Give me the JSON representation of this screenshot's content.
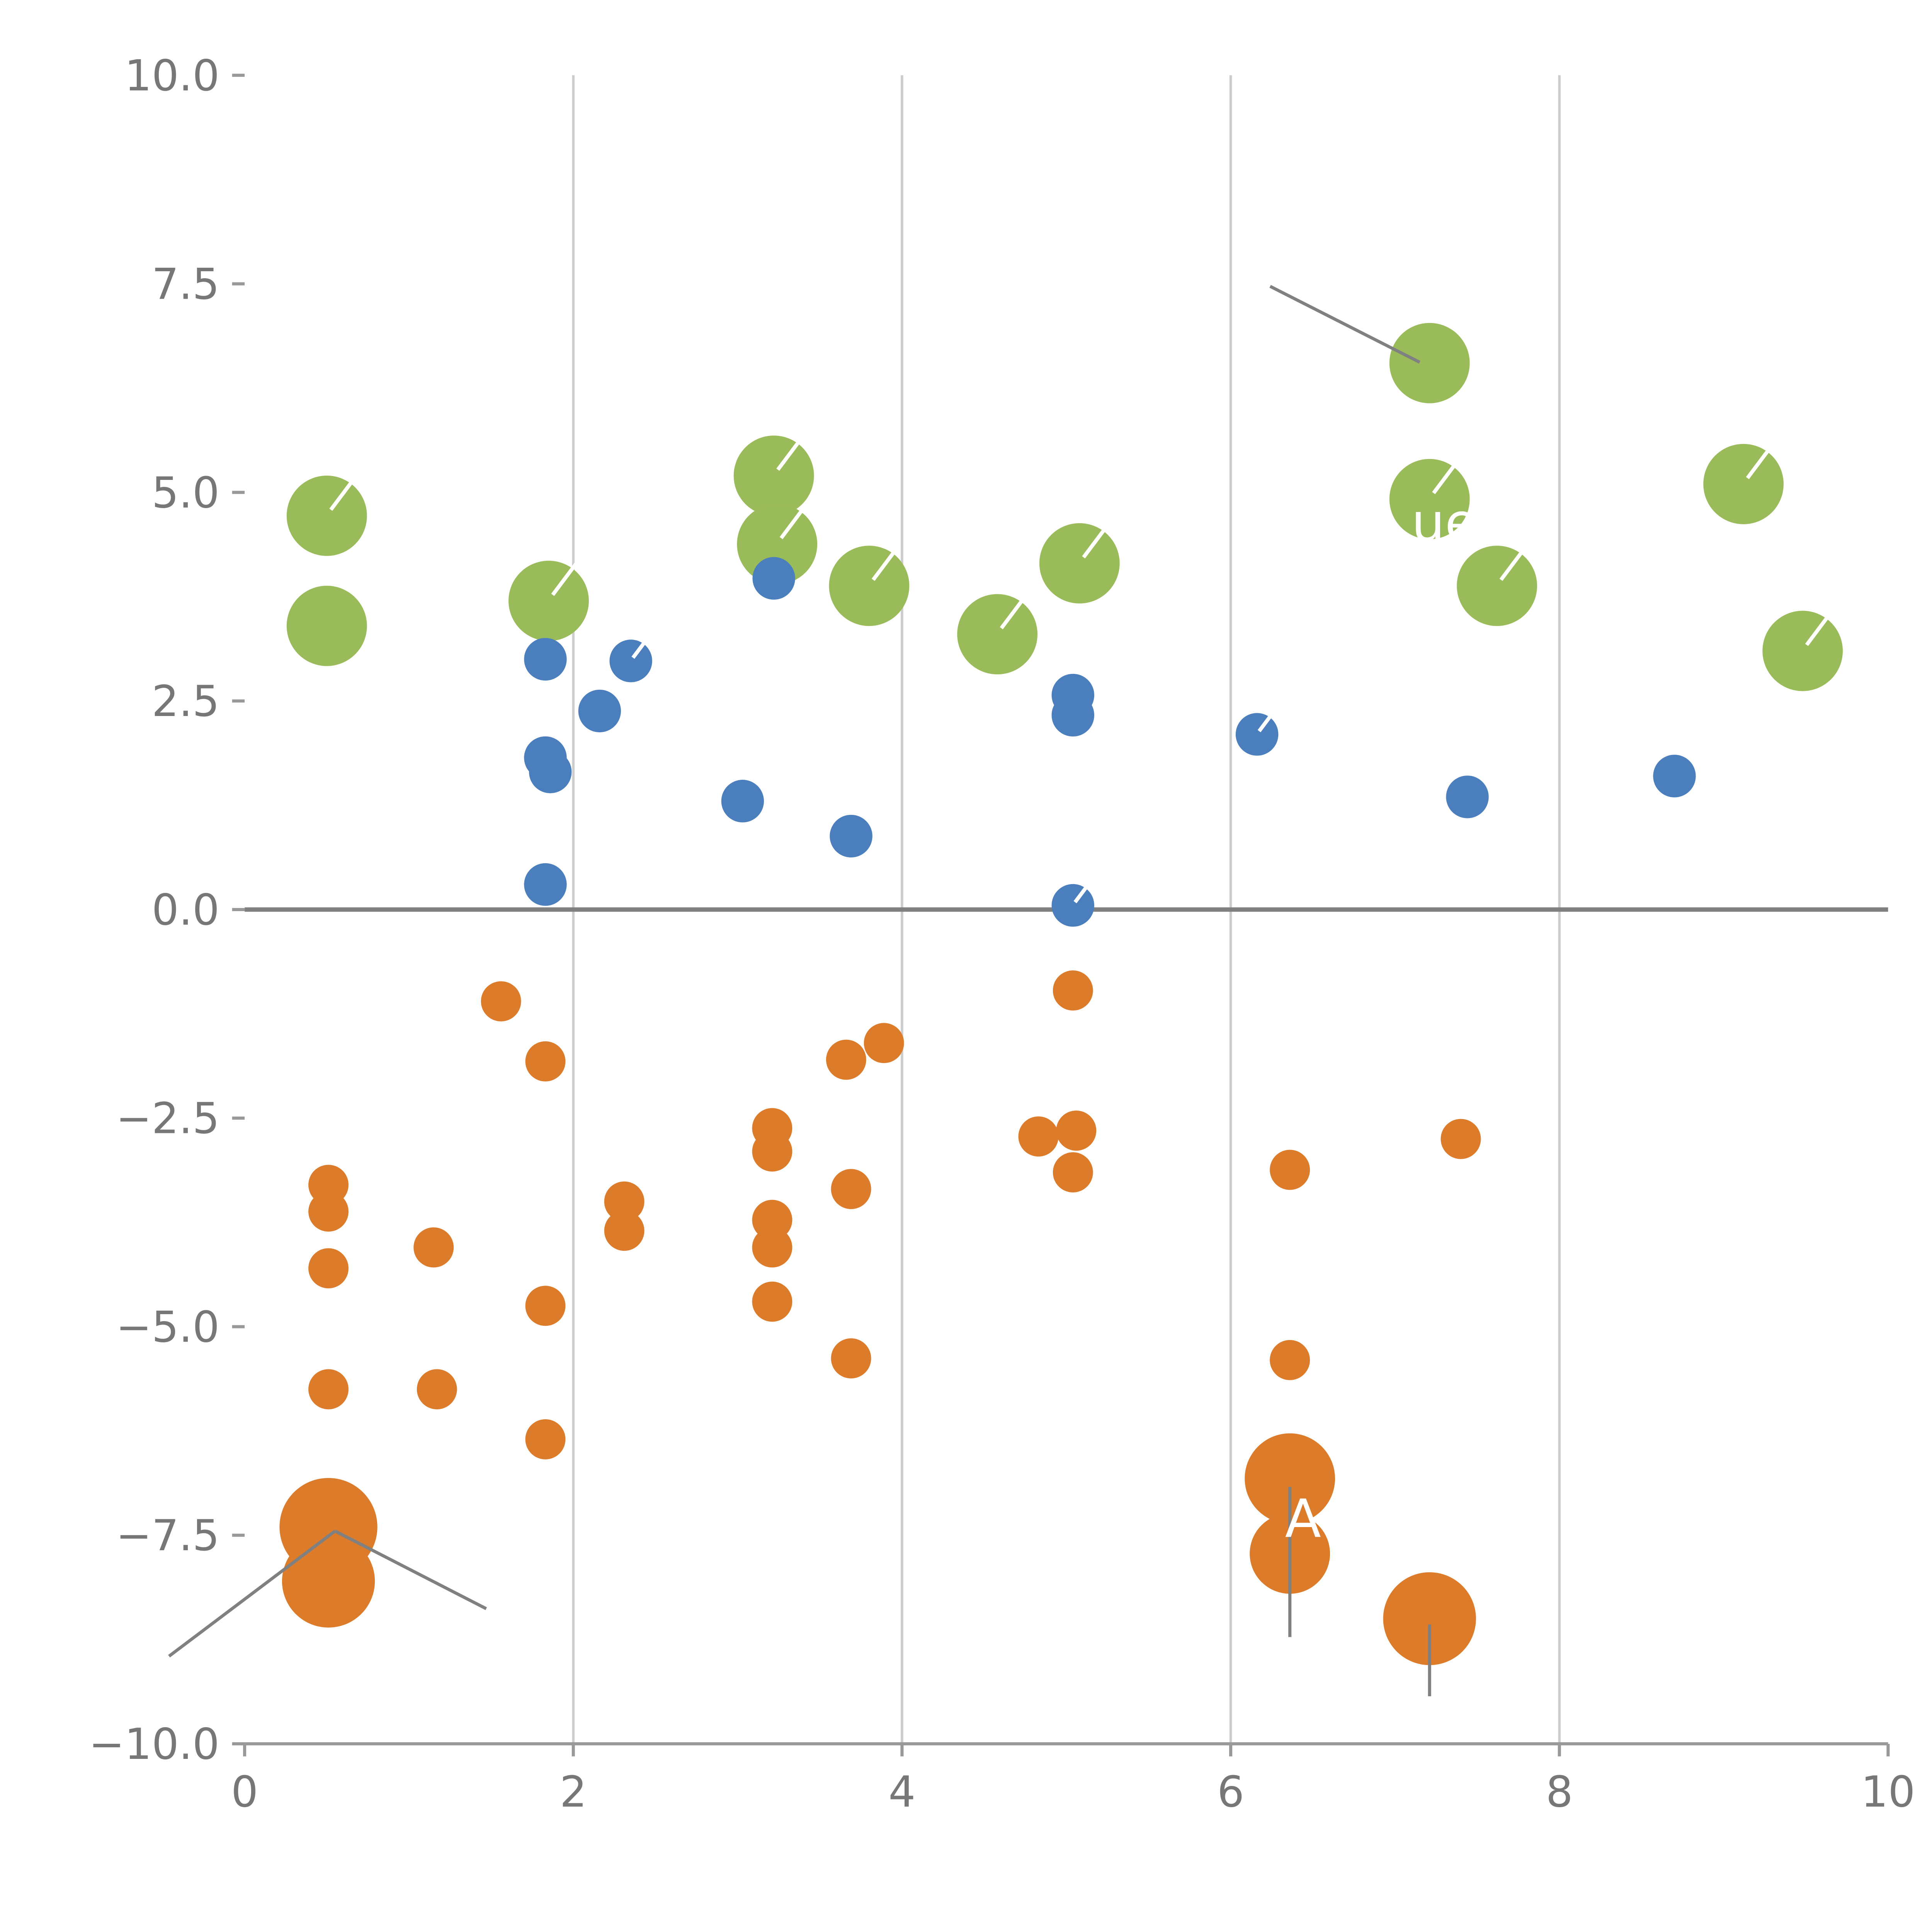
{
  "figure": {
    "background": "#ffffff"
  },
  "chart_data": {
    "type": "scatter",
    "title": "",
    "xlabel": "",
    "ylabel": "",
    "xlim": [
      0,
      10
    ],
    "ylim": [
      -10,
      10
    ],
    "grid": {
      "vertical_at": [
        2,
        4,
        6,
        8
      ],
      "color": "#cccccc"
    },
    "zero_line": {
      "y": 0,
      "color": "#808080"
    },
    "axis_color": "#999999",
    "tick_label_color": "#777777",
    "x_ticks": [
      {
        "value": 0,
        "label": "0"
      },
      {
        "value": 2,
        "label": "2"
      },
      {
        "value": 4,
        "label": "4"
      },
      {
        "value": 6,
        "label": "6"
      },
      {
        "value": 8,
        "label": "8"
      },
      {
        "value": 10,
        "label": "10"
      }
    ],
    "y_ticks": [
      {
        "value": 10,
        "label": "10.0"
      },
      {
        "value": 7.5,
        "label": "7.5"
      },
      {
        "value": 5,
        "label": "5.0"
      },
      {
        "value": 2.5,
        "label": "2.5"
      },
      {
        "value": 0,
        "label": "0.0"
      },
      {
        "value": -2.5,
        "label": "−2.5"
      },
      {
        "value": -5,
        "label": "−5.0"
      },
      {
        "value": -7.5,
        "label": "−7.5"
      },
      {
        "value": -10,
        "label": "−10.0"
      }
    ],
    "series": [
      {
        "name": "green",
        "color": "#9ABB59",
        "default_radius": 32,
        "points": [
          {
            "x": 0.5,
            "y": 4.72,
            "slash": true
          },
          {
            "x": 0.5,
            "y": 3.4
          },
          {
            "x": 1.85,
            "y": 3.7,
            "slash": true
          },
          {
            "x": 3.22,
            "y": 5.2,
            "slash": true
          },
          {
            "x": 3.24,
            "y": 4.38,
            "slash": true
          },
          {
            "x": 3.8,
            "y": 3.88,
            "slash": true
          },
          {
            "x": 4.58,
            "y": 3.3,
            "slash": true
          },
          {
            "x": 5.08,
            "y": 4.15,
            "slash": true
          },
          {
            "x": 7.21,
            "y": 6.55
          },
          {
            "x": 7.21,
            "y": 4.92,
            "slash": true
          },
          {
            "x": 7.62,
            "y": 3.88,
            "slash": true
          },
          {
            "x": 9.12,
            "y": 5.1,
            "slash": true
          },
          {
            "x": 9.48,
            "y": 3.1,
            "slash": true
          }
        ]
      },
      {
        "name": "blue",
        "color": "#4A7EBD",
        "default_radius": 17,
        "points": [
          {
            "x": 1.83,
            "y": 3.0
          },
          {
            "x": 2.16,
            "y": 2.38
          },
          {
            "x": 2.35,
            "y": 2.98,
            "slash": true
          },
          {
            "x": 1.83,
            "y": 1.82
          },
          {
            "x": 1.86,
            "y": 1.65
          },
          {
            "x": 3.03,
            "y": 1.3
          },
          {
            "x": 3.22,
            "y": 3.97
          },
          {
            "x": 3.69,
            "y": 0.88
          },
          {
            "x": 1.83,
            "y": 0.3
          },
          {
            "x": 5.04,
            "y": 2.57
          },
          {
            "x": 5.04,
            "y": 2.33
          },
          {
            "x": 5.04,
            "y": 0.05,
            "slash": true
          },
          {
            "x": 6.16,
            "y": 2.1,
            "slash": true
          },
          {
            "x": 7.44,
            "y": 1.35
          },
          {
            "x": 8.7,
            "y": 1.6
          }
        ]
      },
      {
        "name": "orange",
        "color": "#DC7B29",
        "default_radius": 16,
        "points": [
          {
            "x": 1.56,
            "y": -1.1
          },
          {
            "x": 1.83,
            "y": -1.82
          },
          {
            "x": 5.04,
            "y": -0.97
          },
          {
            "x": 3.89,
            "y": -1.6
          },
          {
            "x": 3.66,
            "y": -1.8
          },
          {
            "x": 3.21,
            "y": -2.62
          },
          {
            "x": 3.21,
            "y": -2.9
          },
          {
            "x": 4.83,
            "y": -2.72
          },
          {
            "x": 5.06,
            "y": -2.65
          },
          {
            "x": 5.04,
            "y": -3.15
          },
          {
            "x": 7.4,
            "y": -2.75
          },
          {
            "x": 6.36,
            "y": -3.12
          },
          {
            "x": 0.51,
            "y": -3.3
          },
          {
            "x": 0.51,
            "y": -3.62
          },
          {
            "x": 3.69,
            "y": -3.35
          },
          {
            "x": 2.31,
            "y": -3.5
          },
          {
            "x": 2.31,
            "y": -3.85
          },
          {
            "x": 3.21,
            "y": -3.72
          },
          {
            "x": 3.21,
            "y": -4.05
          },
          {
            "x": 0.51,
            "y": -4.3
          },
          {
            "x": 1.15,
            "y": -4.05
          },
          {
            "x": 1.83,
            "y": -4.75
          },
          {
            "x": 3.21,
            "y": -4.7
          },
          {
            "x": 3.69,
            "y": -5.38
          },
          {
            "x": 0.51,
            "y": -5.75
          },
          {
            "x": 1.17,
            "y": -5.75
          },
          {
            "x": 6.36,
            "y": -5.4
          },
          {
            "x": 1.83,
            "y": -6.35
          },
          {
            "x": 6.36,
            "y": -6.82,
            "r": 36
          },
          {
            "x": 0.51,
            "y": -7.4,
            "r": 39
          },
          {
            "x": 0.51,
            "y": -8.05,
            "r": 37
          },
          {
            "x": 6.36,
            "y": -7.72,
            "r": 32
          },
          {
            "x": 7.21,
            "y": -8.5,
            "r": 37
          }
        ]
      }
    ],
    "annotations": {
      "leader_color": "#808080",
      "leader_lines": [
        {
          "x1": 6.24,
          "y1": 7.47,
          "x2": 7.15,
          "y2": 6.56
        },
        {
          "x1": -0.46,
          "y1": -8.95,
          "x2": 0.55,
          "y2": -7.45
        },
        {
          "x1": 0.55,
          "y1": -7.45,
          "x2": 1.47,
          "y2": -8.38
        },
        {
          "x1": 6.36,
          "y1": -6.92,
          "x2": 6.36,
          "y2": -8.72
        },
        {
          "x1": 7.21,
          "y1": -8.57,
          "x2": 7.21,
          "y2": -9.43
        }
      ],
      "labels": [
        {
          "text": "A",
          "x": 6.44,
          "y": -7.52,
          "color": "#ffffff",
          "size": 42
        },
        {
          "text": "ue",
          "x": 7.3,
          "y": 4.42,
          "color": "#ffffff",
          "size": 42
        }
      ]
    }
  }
}
